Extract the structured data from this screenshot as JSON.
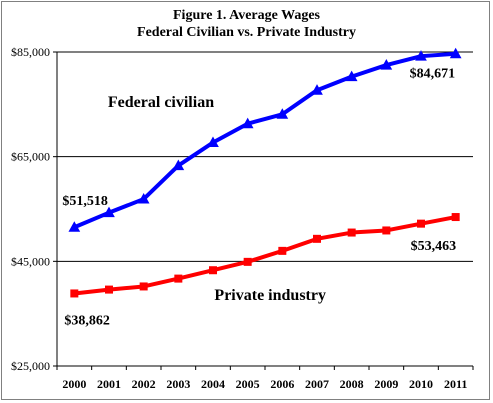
{
  "chart_data": {
    "type": "line",
    "title": "Figure 1. Average Wages",
    "subtitle": "Federal Civilian vs. Private Industry",
    "xlabel": "",
    "ylabel": "",
    "categories": [
      "2000",
      "2001",
      "2002",
      "2003",
      "2004",
      "2005",
      "2006",
      "2007",
      "2008",
      "2009",
      "2010",
      "2011"
    ],
    "ylim": [
      25000,
      85000
    ],
    "y_ticks": [
      25000,
      45000,
      65000,
      85000
    ],
    "y_tick_labels": [
      "$25,000",
      "$45,000",
      "$65,000",
      "$85,000"
    ],
    "grid": "horizontal major",
    "series": [
      {
        "name": "Federal civilian",
        "color": "#0000ff",
        "marker": "triangle",
        "values": [
          51518,
          54300,
          56900,
          63300,
          67700,
          71300,
          73100,
          77700,
          80300,
          82500,
          84200,
          84671
        ]
      },
      {
        "name": "Private industry",
        "color": "#ff0000",
        "marker": "square",
        "values": [
          38862,
          39600,
          40200,
          41700,
          43300,
          44900,
          47000,
          49300,
          50500,
          50900,
          52200,
          53463
        ]
      }
    ],
    "annotations": [
      {
        "text": "$51,518",
        "series": 0,
        "index": 0
      },
      {
        "text": "$84,671",
        "series": 0,
        "index": 11
      },
      {
        "text": "$38,862",
        "series": 1,
        "index": 0
      },
      {
        "text": "$53,463",
        "series": 1,
        "index": 11
      }
    ]
  }
}
